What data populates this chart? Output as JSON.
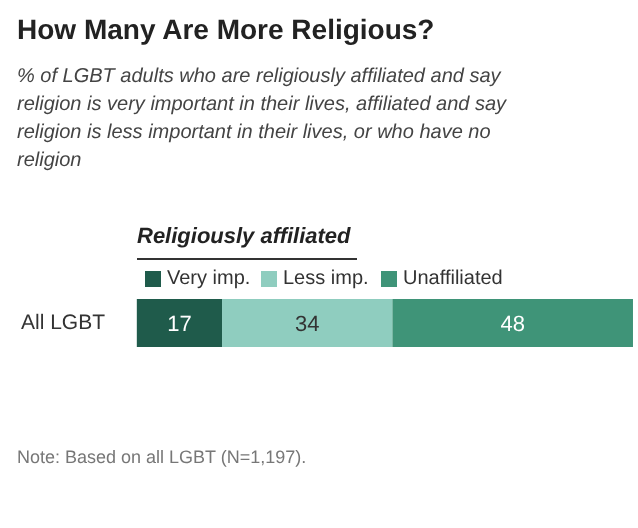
{
  "chart_data": {
    "type": "bar",
    "orientation": "horizontal",
    "stacked": true,
    "title": "How Many Are More Religious?",
    "subtitle": "% of LGBT adults who are religiously affiliated and say religion is very important in their lives, affiliated and say religion is less important in their lives, or who have no religion",
    "legend_title": "Religiously affiliated",
    "categories": [
      "All LGBT"
    ],
    "series": [
      {
        "name": "Very imp.",
        "color": "#1f5b4b",
        "values": [
          17
        ]
      },
      {
        "name": "Less imp.",
        "color": "#8fcdbf",
        "values": [
          34
        ]
      },
      {
        "name": "Unaffiliated",
        "color": "#3f9478",
        "values": [
          48
        ]
      }
    ],
    "data_labels": true,
    "legend": "top",
    "annotations": [
      "Note: Based on all LGBT (N=1,197)."
    ]
  }
}
